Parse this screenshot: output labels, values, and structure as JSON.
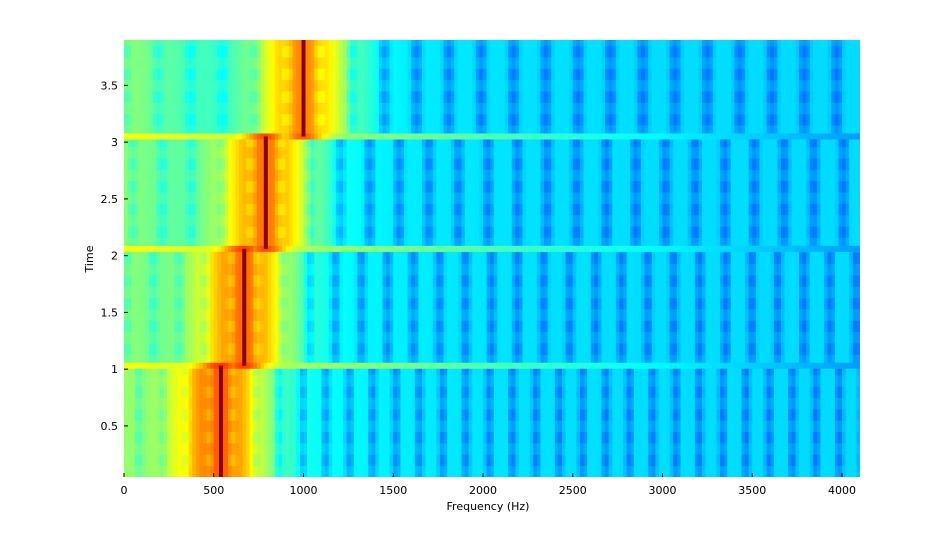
{
  "chart_data": {
    "type": "heatmap",
    "title": "",
    "xlabel": "Frequency (Hz)",
    "ylabel": "Time",
    "xlim": [
      0,
      4100
    ],
    "ylim": [
      0.05,
      3.9
    ],
    "xticks": [
      0,
      500,
      1000,
      1500,
      2000,
      2500,
      3000,
      3500,
      4000
    ],
    "xtick_labels": [
      "0",
      "500",
      "1000",
      "1500",
      "2000",
      "2500",
      "3000",
      "3500",
      "4000"
    ],
    "yticks": [
      0.5,
      1,
      1.5,
      2,
      2.5,
      3,
      3.5
    ],
    "ytick_labels": [
      "0.5",
      "1",
      "1.5",
      "2",
      "2.5",
      "3",
      "3.5"
    ],
    "colormap": "jet",
    "colors": {
      "background": "#20c8f0",
      "peak": "#8b0000",
      "band": "#e0f060"
    },
    "segments": [
      {
        "t_start": 0.05,
        "t_end": 1.03,
        "peak_hz": 540,
        "harmonic_spacing_hz": 130
      },
      {
        "t_start": 1.03,
        "t_end": 2.06,
        "peak_hz": 670,
        "harmonic_spacing_hz": 145
      },
      {
        "t_start": 2.06,
        "t_end": 3.05,
        "peak_hz": 790,
        "harmonic_spacing_hz": 165
      },
      {
        "t_start": 3.05,
        "t_end": 3.9,
        "peak_hz": 1000,
        "harmonic_spacing_hz": 180
      }
    ],
    "transitions": [
      1.03,
      2.06,
      3.05
    ]
  }
}
